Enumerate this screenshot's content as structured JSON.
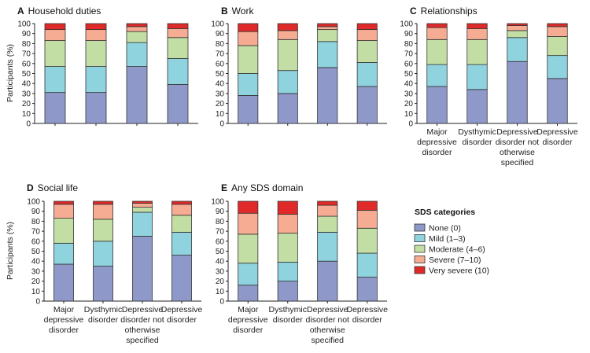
{
  "colors": {
    "None (0)": "#8e99c9",
    "Mild (1–3)": "#8fd3df",
    "Moderate (4–6)": "#c3dea5",
    "Severe (7–10)": "#f5ac92",
    "Very severe (10)": "#e02a2a"
  },
  "legend": {
    "title": "SDS categories",
    "items": [
      "None (0)",
      "Mild (1–3)",
      "Moderate (4–6)",
      "Severe (7–10)",
      "Very severe (10)"
    ]
  },
  "chart_data": [
    {
      "type": "bar",
      "stacked": true,
      "panel_letter": "A",
      "title": "Household duties",
      "ylabel": "Participants (%)",
      "ylim": [
        0,
        100
      ],
      "yticks": [
        0,
        10,
        20,
        30,
        40,
        50,
        60,
        70,
        80,
        90,
        100
      ],
      "show_category_labels": false,
      "categories": [
        "Major depressive disorder",
        "Dysthymic disorder",
        "Depressive disorder not otherwise specified",
        "Depressive disorder"
      ],
      "series": [
        {
          "name": "None (0)",
          "values": [
            31,
            31,
            57,
            39
          ]
        },
        {
          "name": "Mild (1–3)",
          "values": [
            26,
            26,
            24,
            26
          ]
        },
        {
          "name": "Moderate (4–6)",
          "values": [
            26,
            26,
            11,
            21
          ]
        },
        {
          "name": "Severe (7–10)",
          "values": [
            11,
            11,
            5,
            9
          ]
        },
        {
          "name": "Very severe (10)",
          "values": [
            6,
            6,
            3,
            5
          ]
        }
      ]
    },
    {
      "type": "bar",
      "stacked": true,
      "panel_letter": "B",
      "title": "Work",
      "ylabel": "",
      "ylim": [
        0,
        100
      ],
      "yticks": [
        0,
        10,
        20,
        30,
        40,
        50,
        60,
        70,
        80,
        90,
        100
      ],
      "show_category_labels": false,
      "categories": [
        "Major depressive disorder",
        "Dysthymic disorder",
        "Depressive disorder not otherwise specified",
        "Depressive disorder"
      ],
      "series": [
        {
          "name": "None (0)",
          "values": [
            28,
            30,
            56,
            37
          ]
        },
        {
          "name": "Mild (1–3)",
          "values": [
            22,
            23,
            26,
            24
          ]
        },
        {
          "name": "Moderate (4–6)",
          "values": [
            28,
            31,
            12,
            22
          ]
        },
        {
          "name": "Severe (7–10)",
          "values": [
            14,
            9,
            3,
            11
          ]
        },
        {
          "name": "Very severe (10)",
          "values": [
            8,
            7,
            3,
            6
          ]
        }
      ]
    },
    {
      "type": "bar",
      "stacked": true,
      "panel_letter": "C",
      "title": "Relationships",
      "ylabel": "",
      "ylim": [
        0,
        100
      ],
      "yticks": [
        0,
        10,
        20,
        30,
        40,
        50,
        60,
        70,
        80,
        90,
        100
      ],
      "show_category_labels": true,
      "categories": [
        "Major depressive disorder",
        "Dysthymic disorder",
        "Depressive disorder not otherwise specified",
        "Depressive disorder"
      ],
      "series": [
        {
          "name": "None (0)",
          "values": [
            37,
            34,
            62,
            45
          ]
        },
        {
          "name": "Mild (1–3)",
          "values": [
            22,
            25,
            24,
            23
          ]
        },
        {
          "name": "Moderate (4–6)",
          "values": [
            25,
            25,
            7,
            19
          ]
        },
        {
          "name": "Severe (7–10)",
          "values": [
            12,
            11,
            5,
            10
          ]
        },
        {
          "name": "Very severe (10)",
          "values": [
            4,
            5,
            2,
            3
          ]
        }
      ]
    },
    {
      "type": "bar",
      "stacked": true,
      "panel_letter": "D",
      "title": "Social life",
      "ylabel": "Participants (%)",
      "ylim": [
        0,
        100
      ],
      "yticks": [
        0,
        10,
        20,
        30,
        40,
        50,
        60,
        70,
        80,
        90,
        100
      ],
      "show_category_labels": true,
      "categories": [
        "Major depressive disorder",
        "Dysthymic disorder",
        "Depressive disorder not otherwise specified",
        "Depressive disorder"
      ],
      "series": [
        {
          "name": "None (0)",
          "values": [
            37,
            35,
            65,
            46
          ]
        },
        {
          "name": "Mild (1–3)",
          "values": [
            21,
            25,
            24,
            23
          ]
        },
        {
          "name": "Moderate (4–6)",
          "values": [
            25,
            22,
            5,
            17
          ]
        },
        {
          "name": "Severe (7–10)",
          "values": [
            14,
            15,
            4,
            11
          ]
        },
        {
          "name": "Very severe (10)",
          "values": [
            3,
            3,
            2,
            3
          ]
        }
      ]
    },
    {
      "type": "bar",
      "stacked": true,
      "panel_letter": "E",
      "title": "Any SDS domain",
      "ylabel": "",
      "ylim": [
        0,
        100
      ],
      "yticks": [
        0,
        10,
        20,
        30,
        40,
        50,
        60,
        70,
        80,
        90,
        100
      ],
      "show_category_labels": true,
      "categories": [
        "Major depressive disorder",
        "Dysthymic disorder",
        "Depressive disorder not otherwise specified",
        "Depressive disorder"
      ],
      "series": [
        {
          "name": "None (0)",
          "values": [
            16,
            20,
            40,
            24
          ]
        },
        {
          "name": "Mild (1–3)",
          "values": [
            22,
            19,
            29,
            24
          ]
        },
        {
          "name": "Moderate (4–6)",
          "values": [
            29,
            29,
            16,
            25
          ]
        },
        {
          "name": "Severe (7–10)",
          "values": [
            21,
            19,
            11,
            18
          ]
        },
        {
          "name": "Very severe (10)",
          "values": [
            12,
            13,
            4,
            9
          ]
        }
      ]
    }
  ]
}
